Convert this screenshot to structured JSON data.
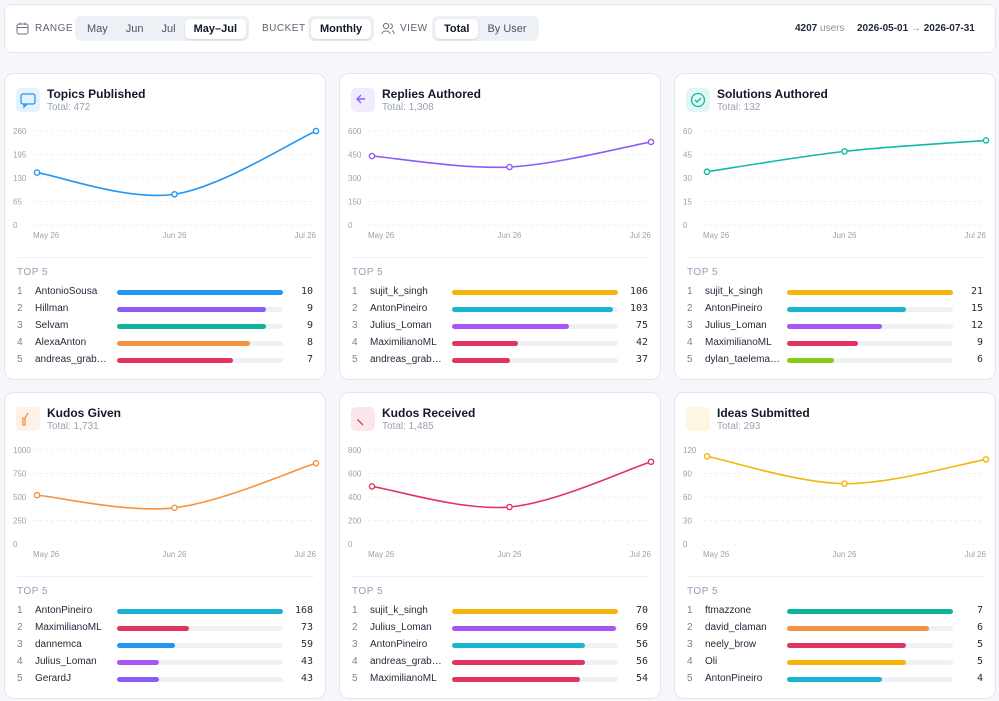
{
  "toolbar": {
    "range_label": "RANGE",
    "range_options": [
      "May",
      "Jun",
      "Jul",
      "May–Jul"
    ],
    "range_selected_index": 3,
    "bucket_label": "BUCKET",
    "bucket_options": [
      "Monthly"
    ],
    "bucket_selected_index": 0,
    "view_label": "VIEW",
    "view_options": [
      "Total",
      "By User"
    ],
    "view_selected_index": 0,
    "users_count": 4207,
    "users_label": "users",
    "date_from": "2026-05-01",
    "date_arrow": "→",
    "date_to": "2026-07-31"
  },
  "cards": [
    {
      "title": "Topics Published",
      "total_text": "Total: 472",
      "color": "#2196f3",
      "chart": {
        "type": "line",
        "categories": [
          "May 26",
          "Jun 26",
          "Jul 26"
        ],
        "values": [
          145,
          85,
          260
        ],
        "ylim": [
          0,
          260
        ],
        "yticks": [
          0,
          65,
          130,
          195,
          260
        ],
        "grid": true
      },
      "top_label": "TOP 5",
      "top": [
        {
          "rank": 1,
          "name": "AntonioSousa",
          "value": 10,
          "color": "#2196f3"
        },
        {
          "rank": 2,
          "name": "Hillman",
          "value": 9,
          "color": "#8b5cf6"
        },
        {
          "rank": 3,
          "name": "Selvam",
          "value": 9,
          "color": "#10b39a"
        },
        {
          "rank": 4,
          "name": "AlexaAnton",
          "value": 8,
          "color": "#f59340"
        },
        {
          "rank": 5,
          "name": "andreas_grab…",
          "value": 7,
          "color": "#e1345f"
        }
      ]
    },
    {
      "title": "Replies Authored",
      "total_text": "Total: 1,308",
      "color": "#8b5cf6",
      "chart": {
        "type": "line",
        "categories": [
          "May 26",
          "Jun 26",
          "Jul 26"
        ],
        "values": [
          440,
          370,
          530
        ],
        "ylim": [
          0,
          600
        ],
        "yticks": [
          0,
          150,
          300,
          450,
          600
        ],
        "grid": true
      },
      "top_label": "TOP 5",
      "top": [
        {
          "rank": 1,
          "name": "sujit_k_singh",
          "value": 106,
          "color": "#f5b50a"
        },
        {
          "rank": 2,
          "name": "AntonPineiro",
          "value": 103,
          "color": "#19b5d0"
        },
        {
          "rank": 3,
          "name": "Julius_Loman",
          "value": 75,
          "color": "#a855f7"
        },
        {
          "rank": 4,
          "name": "MaximilianoML",
          "value": 42,
          "color": "#e1345f"
        },
        {
          "rank": 5,
          "name": "andreas_grab…",
          "value": 37,
          "color": "#e1345f"
        }
      ]
    },
    {
      "title": "Solutions Authored",
      "total_text": "Total: 132",
      "color": "#14b8a6",
      "chart": {
        "type": "line",
        "categories": [
          "May 26",
          "Jun 26",
          "Jul 26"
        ],
        "values": [
          34,
          47,
          54
        ],
        "ylim": [
          0,
          60
        ],
        "yticks": [
          0,
          15,
          30,
          45,
          60
        ],
        "grid": true
      },
      "top_label": "TOP 5",
      "top": [
        {
          "rank": 1,
          "name": "sujit_k_singh",
          "value": 21,
          "color": "#f5b50a"
        },
        {
          "rank": 2,
          "name": "AntonPineiro",
          "value": 15,
          "color": "#19b5d0"
        },
        {
          "rank": 3,
          "name": "Julius_Loman",
          "value": 12,
          "color": "#a855f7"
        },
        {
          "rank": 4,
          "name": "MaximilianoML",
          "value": 9,
          "color": "#e1345f"
        },
        {
          "rank": 5,
          "name": "dylan_taelema…",
          "value": 6,
          "color": "#84cc16"
        }
      ]
    },
    {
      "title": "Kudos Given",
      "total_text": "Total: 1,731",
      "color": "#f59340",
      "chart": {
        "type": "line",
        "categories": [
          "May 26",
          "Jun 26",
          "Jul 26"
        ],
        "values": [
          520,
          385,
          860
        ],
        "ylim": [
          0,
          1000
        ],
        "yticks": [
          0,
          250,
          500,
          750,
          1000
        ],
        "grid": true
      },
      "top_label": "TOP 5",
      "top": [
        {
          "rank": 1,
          "name": "AntonPineiro",
          "value": 168,
          "color": "#19b5d0"
        },
        {
          "rank": 2,
          "name": "MaximilianoML",
          "value": 73,
          "color": "#e1345f"
        },
        {
          "rank": 3,
          "name": "dannemca",
          "value": 59,
          "color": "#2196f3"
        },
        {
          "rank": 4,
          "name": "Julius_Loman",
          "value": 43,
          "color": "#a855f7"
        },
        {
          "rank": 5,
          "name": "GerardJ",
          "value": 43,
          "color": "#8b5cf6"
        }
      ]
    },
    {
      "title": "Kudos Received",
      "total_text": "Total: 1,485",
      "color": "#e1345f",
      "chart": {
        "type": "line",
        "categories": [
          "May 26",
          "Jun 26",
          "Jul 26"
        ],
        "values": [
          490,
          315,
          700
        ],
        "ylim": [
          0,
          800
        ],
        "yticks": [
          0,
          200,
          400,
          600,
          800
        ],
        "grid": true
      },
      "top_label": "TOP 5",
      "top": [
        {
          "rank": 1,
          "name": "sujit_k_singh",
          "value": 70,
          "color": "#f5b50a"
        },
        {
          "rank": 2,
          "name": "Julius_Loman",
          "value": 69,
          "color": "#a855f7"
        },
        {
          "rank": 3,
          "name": "AntonPineiro",
          "value": 56,
          "color": "#19b5d0"
        },
        {
          "rank": 4,
          "name": "andreas_grab…",
          "value": 56,
          "color": "#e1345f"
        },
        {
          "rank": 5,
          "name": "MaximilianoML",
          "value": 54,
          "color": "#e1345f"
        }
      ]
    },
    {
      "title": "Ideas Submitted",
      "total_text": "Total: 293",
      "color": "#f5b50a",
      "chart": {
        "type": "line",
        "categories": [
          "May 26",
          "Jun 26",
          "Jul 26"
        ],
        "values": [
          112,
          77,
          108
        ],
        "ylim": [
          0,
          120
        ],
        "yticks": [
          0,
          30,
          60,
          90,
          120
        ],
        "grid": true
      },
      "top_label": "TOP 5",
      "top": [
        {
          "rank": 1,
          "name": "ftmazzone",
          "value": 7,
          "color": "#10b39a"
        },
        {
          "rank": 2,
          "name": "david_claman",
          "value": 6,
          "color": "#f59340"
        },
        {
          "rank": 3,
          "name": "neely_brow",
          "value": 5,
          "color": "#e1345f"
        },
        {
          "rank": 4,
          "name": "Oli",
          "value": 5,
          "color": "#f5b50a"
        },
        {
          "rank": 5,
          "name": "AntonPineiro",
          "value": 4,
          "color": "#19b5d0"
        }
      ]
    }
  ]
}
